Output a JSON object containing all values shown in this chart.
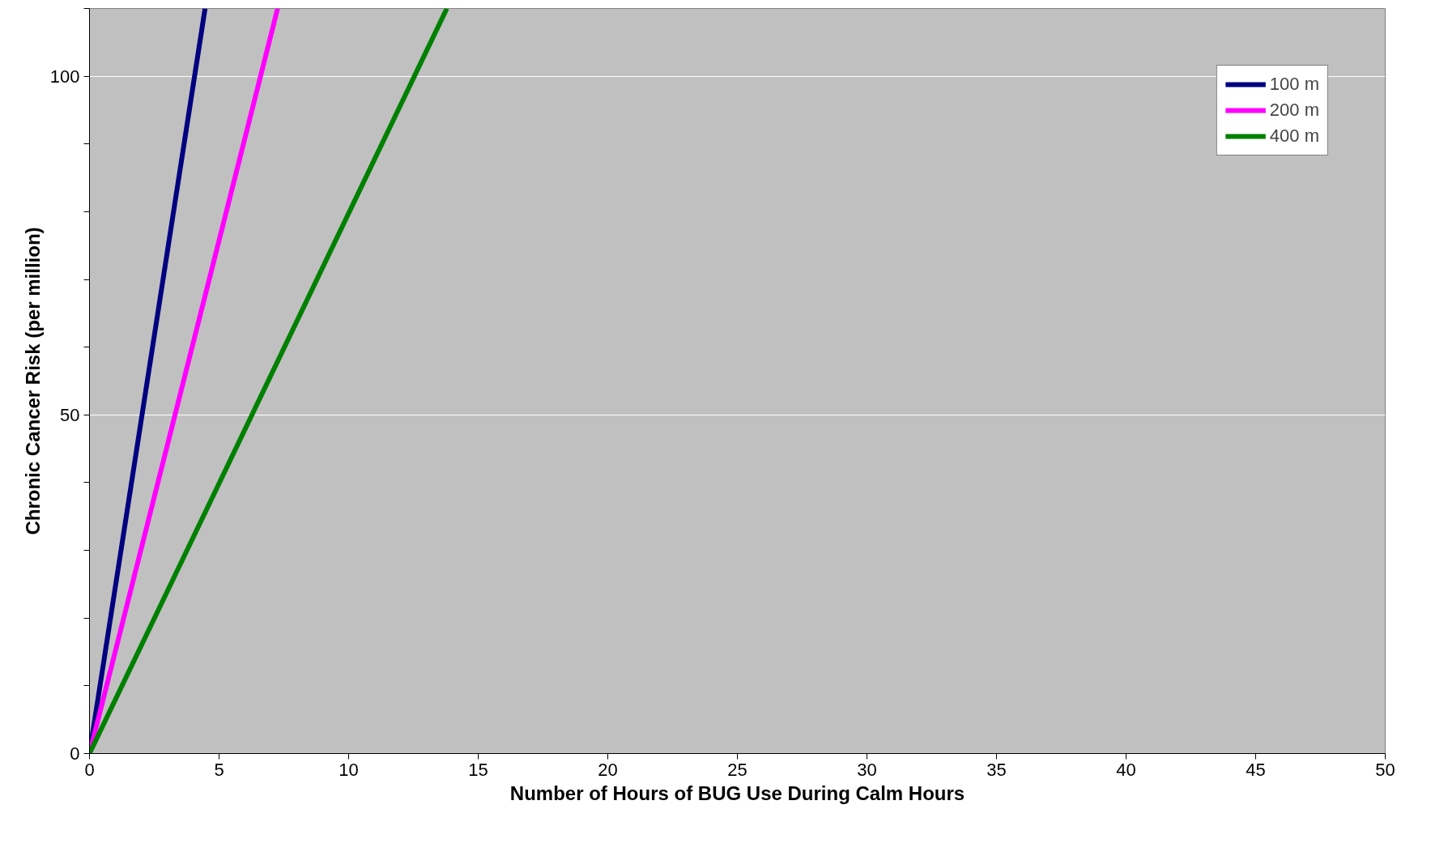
{
  "chart_data": {
    "type": "line",
    "xlabel": "Number of Hours of BUG Use During Calm Hours",
    "ylabel": "Chronic Cancer Risk (per million)",
    "xlim": [
      0,
      50
    ],
    "ylim": [
      0,
      110
    ],
    "xticks": [
      0,
      5,
      10,
      15,
      20,
      25,
      30,
      35,
      40,
      45,
      50
    ],
    "yticks": [
      0,
      {
        "value": 10,
        "label": null
      },
      {
        "value": 20,
        "label": null
      },
      {
        "value": 30,
        "label": null
      },
      {
        "value": 40,
        "label": null
      },
      50,
      {
        "value": 60,
        "label": null
      },
      {
        "value": 70,
        "label": null
      },
      {
        "value": 80,
        "label": null
      },
      {
        "value": 90,
        "label": null
      },
      100,
      {
        "value": 110,
        "label": null
      }
    ],
    "grid": "y",
    "legend": "top right",
    "marker": "none",
    "line_style": "solid",
    "series": [
      {
        "name": "100 m",
        "color": "#000080",
        "x": [
          0,
          4.46
        ],
        "values": [
          0,
          110
        ]
      },
      {
        "name": "200 m",
        "color": "#ff00ff",
        "x": [
          0,
          7.26
        ],
        "values": [
          0,
          110
        ]
      },
      {
        "name": "400 m",
        "color": "#008000",
        "x": [
          0,
          13.79
        ],
        "values": [
          0,
          110
        ]
      }
    ]
  }
}
